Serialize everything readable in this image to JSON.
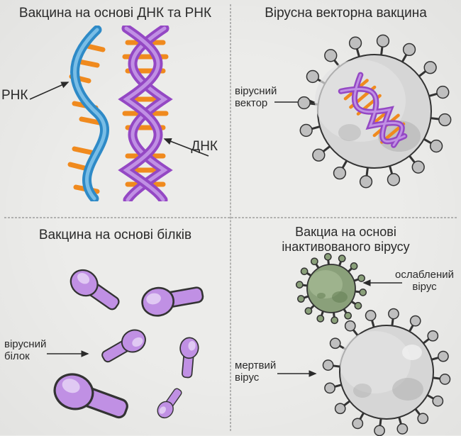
{
  "background_color": "#ececea",
  "divider_color": "#777777",
  "panels": {
    "tl": {
      "title": "Вакцина на основі ДНК та РНК",
      "title_fontsize": 19,
      "label_rnk": "РНК",
      "label_dnk": "ДНК",
      "label_fontsize": 19,
      "colors": {
        "rna_strand": "#2e8ac7",
        "dna_strand": "#9448c4",
        "rungs": "#f08a1e",
        "outline": "#222222"
      }
    },
    "tr": {
      "title": "Вірусна векторна вакцина",
      "title_fontsize": 19,
      "label_vector": "вірусний\nвектор",
      "label_fontsize": 15,
      "colors": {
        "virus_body": "#d6d6d6",
        "virus_shadow": "#a8a8a8",
        "spike": "#bfbfbf",
        "outline": "#333333",
        "dna_strand": "#9448c4",
        "rungs": "#f08a1e"
      }
    },
    "bl": {
      "title": "Вакцина на основі білків",
      "title_fontsize": 19,
      "label_protein": "вірусний\nбілок",
      "label_fontsize": 15,
      "colors": {
        "protein_fill": "#c090e4",
        "protein_shadow": "#9a5fc8",
        "outline": "#333333"
      }
    },
    "br": {
      "title": "Вакциа на основі\nінактивованого вірусу",
      "title_fontsize": 18,
      "label_weak": "ослаблений\nвірус",
      "label_dead": "мертвий\nвірус",
      "label_fontsize": 15,
      "colors": {
        "weak_body": "#8aa07a",
        "weak_shadow": "#5e7a4e",
        "dead_body": "#d6d6d6",
        "dead_shadow": "#a8a8a8",
        "spike": "#bfbfbf",
        "outline": "#333333"
      }
    }
  }
}
